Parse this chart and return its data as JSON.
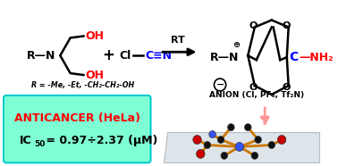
{
  "bg_color": "#ffffff",
  "box_color": "#7fffd4",
  "box_edge_color": "#00cccc",
  "anticancer_text": "ANTICANCER (HeLa)",
  "anticancer_color": "#ff0000",
  "ic50_color": "#000000",
  "ic50_main": " = 0.97÷2.37 (μM)",
  "oh_red": "#ff0000",
  "cn_blue": "#0000ff",
  "nh2_red": "#ff0000",
  "black": "#000000",
  "r_group": "R = -Me, -Et, -CH₂-CH₂-OH",
  "anion_label": "ANION (Cl, PF₆, Tf₂N)",
  "rt_label": "RT",
  "platform_color": "#dde4ea",
  "platform_edge": "#bbbbbb",
  "orange_bond": "#cc7700"
}
